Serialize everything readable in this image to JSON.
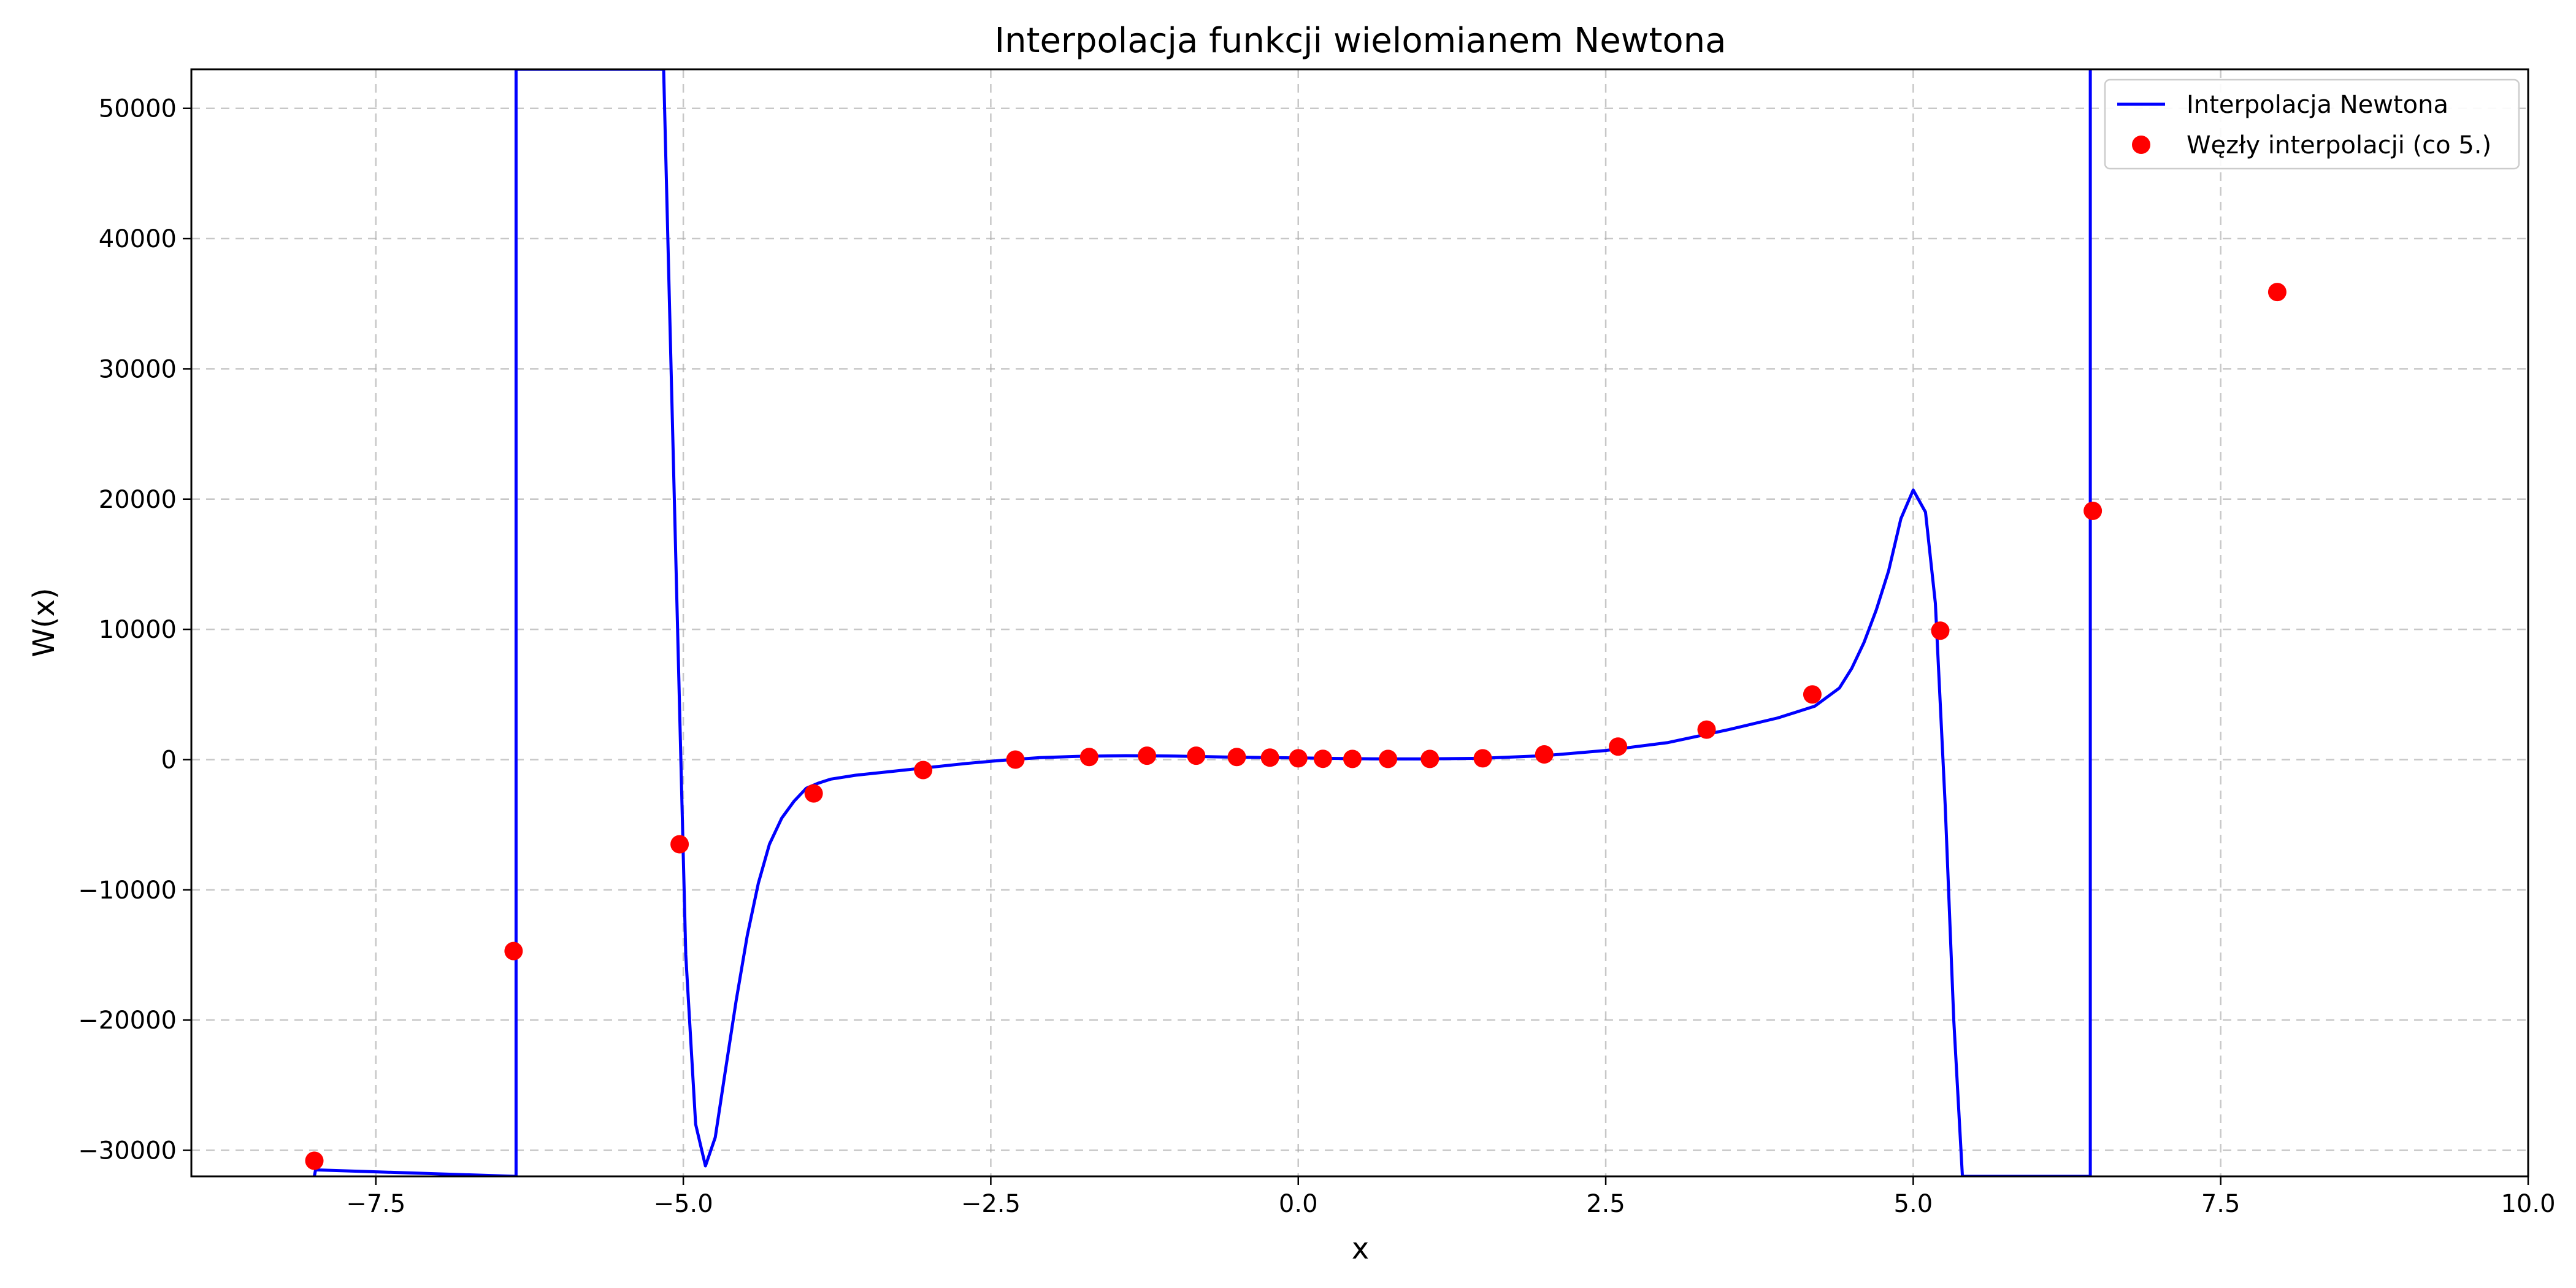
{
  "chart_data": {
    "type": "line",
    "title": "Interpolacja funkcji wielomianem Newtona",
    "xlabel": "x",
    "ylabel": "W(x)",
    "xlim": [
      -9,
      10
    ],
    "ylim": [
      -32000,
      53000
    ],
    "grid": true,
    "legend_position": "top-right",
    "xticks": [
      -7.5,
      -5.0,
      -2.5,
      0.0,
      2.5,
      5.0,
      7.5,
      10.0
    ],
    "xtick_labels": [
      "−7.5",
      "−5.0",
      "−2.5",
      "0.0",
      "2.5",
      "5.0",
      "7.5",
      "10.0"
    ],
    "yticks": [
      -30000,
      -20000,
      -10000,
      0,
      10000,
      20000,
      30000,
      40000,
      50000
    ],
    "ytick_labels": [
      "−30000",
      "−20000",
      "−10000",
      "0",
      "10000",
      "20000",
      "30000",
      "40000",
      "50000"
    ],
    "series": [
      {
        "name": "Interpolacja Newtona",
        "kind": "line",
        "color": "#0000ff",
        "x": [
          -8.0,
          -7.99,
          -6.36,
          -6.36,
          -5.16,
          -5.06,
          -4.98,
          -4.9,
          -4.82,
          -4.74,
          -4.66,
          -4.57,
          -4.48,
          -4.39,
          -4.3,
          -4.2,
          -4.1,
          -4.0,
          -3.9,
          -3.8,
          -3.6,
          -3.3,
          -3.0,
          -2.7,
          -2.4,
          -2.1,
          -1.8,
          -1.4,
          -1.0,
          -0.6,
          -0.2,
          0.2,
          0.6,
          1.0,
          1.5,
          2.0,
          2.5,
          3.0,
          3.5,
          3.9,
          4.2,
          4.4,
          4.5,
          4.6,
          4.7,
          4.8,
          4.9,
          5.0,
          5.1,
          5.18,
          5.26,
          5.33,
          5.4,
          5.41,
          6.44,
          6.44
        ],
        "y": [
          -32000,
          -31500,
          -32000,
          53000,
          53000,
          15000,
          -15000,
          -28000,
          -31200,
          -29000,
          -24000,
          -18500,
          -13500,
          -9500,
          -6500,
          -4500,
          -3200,
          -2200,
          -1800,
          -1500,
          -1200,
          -900,
          -600,
          -300,
          -50,
          150,
          250,
          300,
          270,
          200,
          150,
          100,
          60,
          50,
          100,
          300,
          700,
          1300,
          2300,
          3200,
          4100,
          5500,
          7000,
          9000,
          11500,
          14500,
          18500,
          20700,
          19000,
          12000,
          -3500,
          -20000,
          -32000,
          -32000,
          -32000,
          53000
        ]
      },
      {
        "name": "Węzły interpolacji (co 5.)",
        "kind": "scatter",
        "color": "#ff0000",
        "x": [
          -8.0,
          -6.38,
          -5.03,
          -3.94,
          -3.05,
          -2.3,
          -1.7,
          -1.23,
          -0.83,
          -0.5,
          -0.23,
          0.0,
          0.2,
          0.44,
          0.73,
          1.07,
          1.5,
          2.0,
          2.6,
          3.32,
          4.18,
          5.22,
          6.46,
          7.96
        ],
        "y": [
          -30800,
          -14700,
          -6500,
          -2600,
          -800,
          0,
          200,
          300,
          300,
          200,
          150,
          100,
          60,
          50,
          50,
          50,
          100,
          400,
          1000,
          2300,
          5000,
          9900,
          19100,
          35900
        ]
      }
    ]
  }
}
